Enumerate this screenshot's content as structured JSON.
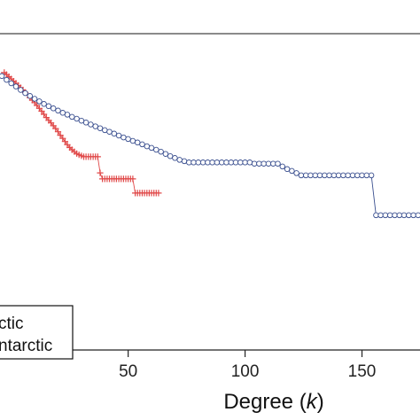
{
  "chart_data": {
    "type": "scatter",
    "title": "",
    "xlabel_prefix": "Degree (",
    "xlabel_var": "k",
    "xlabel_suffix": ")",
    "ylabel": "",
    "xticks": [
      50,
      100,
      150
    ],
    "xlim": [
      -5,
      175
    ],
    "ylim": [
      0,
      1
    ],
    "grid": false,
    "legend": {
      "placement": "bottom-left",
      "entries": [
        "ctic",
        "ntarctic"
      ]
    },
    "series": [
      {
        "marker": "plus",
        "color": "#e04848",
        "x": [
          -3,
          -2,
          -1,
          0,
          1,
          2,
          3,
          4,
          5,
          6,
          7,
          8,
          9,
          10,
          11,
          12,
          13,
          14,
          15,
          16,
          17,
          18,
          19,
          20,
          21,
          22,
          23,
          24,
          25,
          26,
          27,
          28,
          29,
          30,
          31,
          32,
          33,
          34,
          35,
          36,
          37,
          38,
          39,
          40,
          41,
          42,
          43,
          44,
          45,
          46,
          47,
          48,
          49,
          50,
          51,
          52,
          53,
          54,
          55,
          56,
          57,
          58,
          59,
          60,
          61,
          62,
          63
        ],
        "y": [
          0.877,
          0.871,
          0.864,
          0.857,
          0.85,
          0.843,
          0.836,
          0.829,
          0.822,
          0.814,
          0.806,
          0.798,
          0.79,
          0.782,
          0.773,
          0.764,
          0.755,
          0.745,
          0.735,
          0.726,
          0.718,
          0.709,
          0.7,
          0.69,
          0.679,
          0.669,
          0.659,
          0.649,
          0.64,
          0.633,
          0.627,
          0.621,
          0.617,
          0.614,
          0.611,
          0.611,
          0.611,
          0.611,
          0.611,
          0.611,
          0.611,
          0.56,
          0.541,
          0.541,
          0.541,
          0.541,
          0.541,
          0.541,
          0.541,
          0.541,
          0.541,
          0.541,
          0.541,
          0.541,
          0.541,
          0.541,
          0.496,
          0.496,
          0.496,
          0.496,
          0.496,
          0.496,
          0.496,
          0.496,
          0.496,
          0.496,
          0.496
        ]
      },
      {
        "marker": "circle",
        "color": "#3a4f8f",
        "x": [
          -4,
          -2,
          0,
          2,
          4,
          6,
          8,
          10,
          12,
          14,
          16,
          18,
          20,
          22,
          24,
          26,
          28,
          30,
          32,
          34,
          36,
          38,
          40,
          42,
          44,
          46,
          48,
          50,
          52,
          54,
          56,
          58,
          60,
          62,
          64,
          66,
          68,
          70,
          72,
          74,
          76,
          78,
          80,
          82,
          84,
          86,
          88,
          90,
          92,
          94,
          96,
          98,
          100,
          102,
          104,
          106,
          108,
          110,
          112,
          114,
          116,
          118,
          120,
          122,
          124,
          126,
          128,
          130,
          132,
          134,
          136,
          138,
          140,
          142,
          144,
          146,
          148,
          150,
          152,
          154,
          156,
          158,
          160,
          162,
          164,
          166,
          168,
          170,
          172,
          174
        ],
        "y": [
          0.866,
          0.854,
          0.843,
          0.833,
          0.822,
          0.812,
          0.803,
          0.794,
          0.786,
          0.778,
          0.771,
          0.764,
          0.757,
          0.75,
          0.744,
          0.737,
          0.731,
          0.725,
          0.719,
          0.713,
          0.707,
          0.701,
          0.695,
          0.69,
          0.684,
          0.678,
          0.672,
          0.667,
          0.661,
          0.656,
          0.65,
          0.644,
          0.639,
          0.633,
          0.627,
          0.62,
          0.613,
          0.607,
          0.601,
          0.597,
          0.593,
          0.593,
          0.593,
          0.593,
          0.593,
          0.593,
          0.593,
          0.593,
          0.593,
          0.593,
          0.593,
          0.593,
          0.593,
          0.593,
          0.589,
          0.589,
          0.589,
          0.589,
          0.589,
          0.589,
          0.58,
          0.572,
          0.566,
          0.559,
          0.552,
          0.552,
          0.552,
          0.552,
          0.552,
          0.552,
          0.552,
          0.552,
          0.552,
          0.552,
          0.552,
          0.552,
          0.552,
          0.552,
          0.552,
          0.552,
          0.426,
          0.426,
          0.426,
          0.426,
          0.426,
          0.426,
          0.426,
          0.426,
          0.426,
          0.426
        ]
      }
    ]
  }
}
